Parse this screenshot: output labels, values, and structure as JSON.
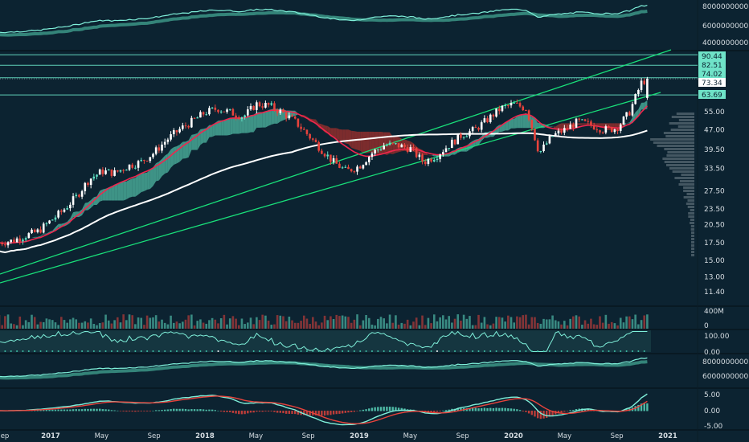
{
  "chart_data": {
    "type": "candlestick",
    "scale": "log",
    "grid": false,
    "colors": {
      "background": "#0c2331",
      "up": "#5fe0c4",
      "down": "#e8433c",
      "ema": "#f0264e",
      "sma": "#ffffff",
      "trendline": "#19e07a",
      "cloud_up": "#4fb9a3",
      "cloud_down": "#a2302c",
      "level_line": "#5fd0b8",
      "profile": "#8a96a0"
    },
    "monthly_close": {
      "months": [
        "2016-09",
        "2016-10",
        "2016-11",
        "2016-12",
        "2017-01",
        "2017-02",
        "2017-03",
        "2017-04",
        "2017-05",
        "2017-06",
        "2017-07",
        "2017-08",
        "2017-09",
        "2017-10",
        "2017-11",
        "2017-12",
        "2018-01",
        "2018-02",
        "2018-03",
        "2018-04",
        "2018-05",
        "2018-06",
        "2018-07",
        "2018-08",
        "2018-09",
        "2018-10",
        "2018-11",
        "2018-12",
        "2019-01",
        "2019-02",
        "2019-03",
        "2019-04",
        "2019-05",
        "2019-06",
        "2019-07",
        "2019-08",
        "2019-09",
        "2019-10",
        "2019-11",
        "2019-12",
        "2020-01",
        "2020-02",
        "2020-03",
        "2020-04",
        "2020-05",
        "2020-06",
        "2020-07",
        "2020-08",
        "2020-09",
        "2020-10",
        "2020-11"
      ],
      "values": [
        17.5,
        17.8,
        18.6,
        19.3,
        21.2,
        23.3,
        26.2,
        30.5,
        32.7,
        32.2,
        34.2,
        35.4,
        38.3,
        42.9,
        47.0,
        50.5,
        54.6,
        56.6,
        54.6,
        52.7,
        58.8,
        58.0,
        54.6,
        50.5,
        45.0,
        39.8,
        35.4,
        32.7,
        34.2,
        38.3,
        41.2,
        41.0,
        39.8,
        35.4,
        37.5,
        41.2,
        45.0,
        47.0,
        51.5,
        56.6,
        58.8,
        56.6,
        38.3,
        44.4,
        47.0,
        50.5,
        49.0,
        47.0,
        47.5,
        54.6,
        72.0
      ]
    },
    "price_axis": {
      "ticks": [
        "55.00",
        "47.00",
        "39.50",
        "33.50",
        "27.50",
        "23.50",
        "20.50",
        "17.50",
        "15.00",
        "13.00",
        "11.40"
      ],
      "values": [
        55,
        47,
        39.5,
        33.5,
        27.5,
        23.5,
        20.5,
        17.5,
        15,
        13,
        11.4
      ]
    },
    "levels": [
      {
        "label": "90.44",
        "value": 90.44,
        "style": "line"
      },
      {
        "label": "82.51",
        "value": 82.51,
        "style": "line"
      },
      {
        "label": "74.02",
        "value": 74.02,
        "style": "line"
      },
      {
        "label": "73.34",
        "value": 73.34,
        "style": "current"
      },
      {
        "label": "63.69",
        "value": 63.69,
        "style": "line"
      }
    ],
    "top_panel_axis": [
      "8000000000.00",
      "6000000000.00",
      "4000000000.00"
    ],
    "volume_axis": [
      "400M",
      "0"
    ],
    "oscillator_axis": [
      "100.00",
      "0.00"
    ],
    "line_panel_axis": [
      "8000000000.00",
      "6000000000.00"
    ],
    "macd_axis": [
      "5.00",
      "0.00",
      "-5.00"
    ],
    "time_axis": [
      "ep",
      "2017",
      "May",
      "Sep",
      "2018",
      "May",
      "Sep",
      "2019",
      "May",
      "Sep",
      "2020",
      "May",
      "Sep",
      "2021"
    ]
  }
}
